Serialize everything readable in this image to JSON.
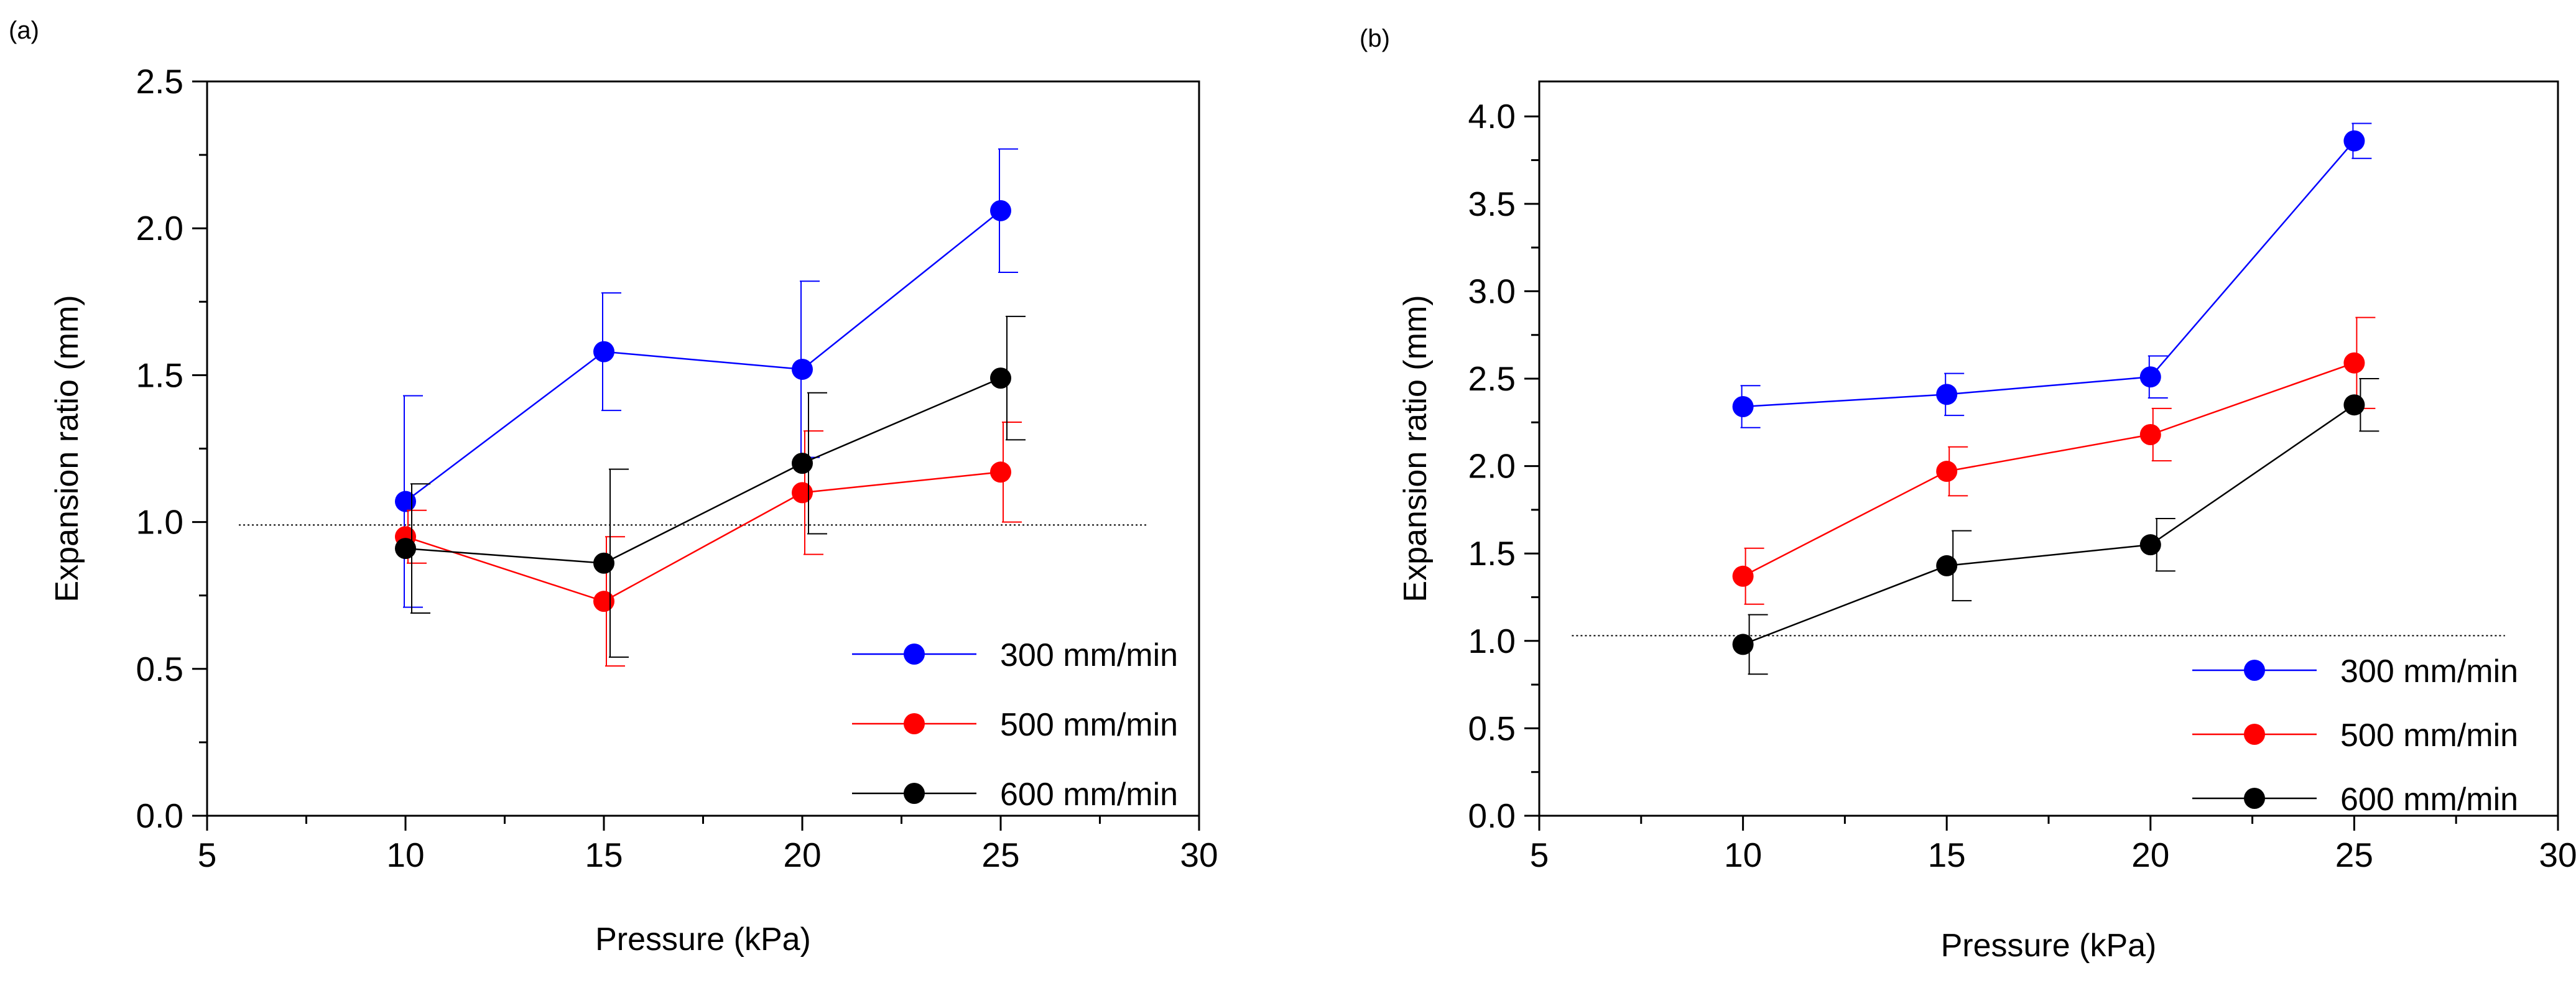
{
  "chart_data": [
    {
      "type": "line",
      "panel_label": "(a)",
      "title": "",
      "xlabel": "Pressure (kPa)",
      "ylabel": "Expansion ratio (mm)",
      "xlim": [
        5,
        30
      ],
      "ylim": [
        0.0,
        2.5
      ],
      "x_ticks": [
        "5",
        "10",
        "15",
        "20",
        "25",
        "30"
      ],
      "y_ticks": [
        "0.0",
        "0.5",
        "1.0",
        "1.5",
        "2.0",
        "2.5"
      ],
      "x_tick_values": [
        5,
        10,
        15,
        20,
        25,
        30
      ],
      "y_tick_values": [
        0.0,
        0.5,
        1.0,
        1.5,
        2.0,
        2.5
      ],
      "reference_line": 0.99,
      "legend_position": "bottom-right",
      "x": [
        10,
        15,
        20,
        25
      ],
      "series": [
        {
          "name": "300 mm/min",
          "color": "#0000ff",
          "values": [
            1.07,
            1.58,
            1.52,
            2.06
          ],
          "errors": [
            0.36,
            0.2,
            0.3,
            0.21
          ]
        },
        {
          "name": "500 mm/min",
          "color": "#ff0000",
          "values": [
            0.95,
            0.73,
            1.1,
            1.17
          ],
          "errors": [
            0.09,
            0.22,
            0.21,
            0.17
          ]
        },
        {
          "name": "600 mm/min",
          "color": "#000000",
          "values": [
            0.91,
            0.86,
            1.2,
            1.49
          ],
          "errors": [
            0.22,
            0.32,
            0.24,
            0.21
          ]
        }
      ]
    },
    {
      "type": "line",
      "panel_label": "(b)",
      "title": "",
      "xlabel": "Pressure (kPa)",
      "ylabel": "Expansion ratio (mm)",
      "xlim": [
        5,
        30
      ],
      "ylim": [
        0.0,
        4.2
      ],
      "x_ticks": [
        "5",
        "10",
        "15",
        "20",
        "25",
        "30"
      ],
      "y_ticks": [
        "0.0",
        "0.5",
        "1.0",
        "1.5",
        "2.0",
        "2.5",
        "3.0",
        "3.5",
        "4.0"
      ],
      "x_tick_values": [
        5,
        10,
        15,
        20,
        25,
        30
      ],
      "y_tick_values": [
        0.0,
        0.5,
        1.0,
        1.5,
        2.0,
        2.5,
        3.0,
        3.5,
        4.0
      ],
      "reference_line": 1.03,
      "legend_position": "bottom-right",
      "x": [
        10,
        15,
        20,
        25
      ],
      "series": [
        {
          "name": "300 mm/min",
          "color": "#0000ff",
          "values": [
            2.34,
            2.41,
            2.51,
            3.86
          ],
          "errors": [
            0.12,
            0.12,
            0.12,
            0.1
          ]
        },
        {
          "name": "500 mm/min",
          "color": "#ff0000",
          "values": [
            1.37,
            1.97,
            2.18,
            2.59
          ],
          "errors": [
            0.16,
            0.14,
            0.15,
            0.26
          ]
        },
        {
          "name": "600 mm/min",
          "color": "#000000",
          "values": [
            0.98,
            1.43,
            1.55,
            2.35
          ],
          "errors": [
            0.17,
            0.2,
            0.15,
            0.15
          ]
        }
      ]
    }
  ]
}
